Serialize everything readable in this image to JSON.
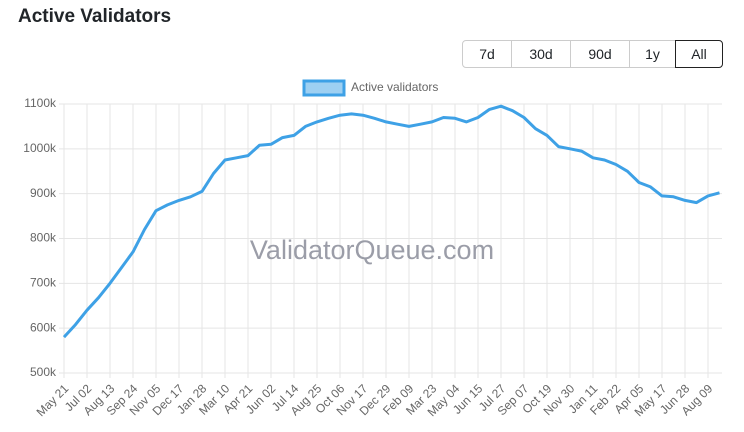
{
  "header": {
    "title": "Active Validators"
  },
  "range_buttons": [
    {
      "label": "7d"
    },
    {
      "label": "30d"
    },
    {
      "label": "90d"
    },
    {
      "label": "1y"
    },
    {
      "label": "All",
      "selected": true
    }
  ],
  "chart_data": {
    "type": "line",
    "watermark": "ValidatorQueue.com",
    "categories": [
      "May 21",
      null,
      "Jul 02",
      null,
      "Aug 13",
      null,
      "Sep 24",
      null,
      "Nov 05",
      null,
      "Dec 17",
      null,
      "Jan 28",
      null,
      "Mar 10",
      null,
      "Apr 21",
      null,
      "Jun 02",
      null,
      "Jul 14",
      null,
      "Aug 25",
      null,
      "Oct 06",
      null,
      "Nov 17",
      null,
      "Dec 29",
      null,
      "Feb 09",
      null,
      "Mar 23",
      null,
      "May 04",
      null,
      "Jun 15",
      null,
      "Jul 27",
      null,
      "Sep 07",
      null,
      "Oct 19",
      null,
      "Nov 30",
      null,
      "Jan 11",
      null,
      "Feb 22",
      null,
      "Apr 05",
      null,
      "May 17",
      null,
      "Jun 28",
      null,
      "Aug 09",
      null
    ],
    "series": [
      {
        "name": "Active validators",
        "color": "#3ea1e6",
        "values": [
          580000,
          608000,
          640000,
          668000,
          700000,
          735000,
          770000,
          820000,
          862000,
          875000,
          885000,
          893000,
          905000,
          945000,
          975000,
          980000,
          985000,
          1008000,
          1010000,
          1025000,
          1030000,
          1050000,
          1060000,
          1068000,
          1075000,
          1078000,
          1075000,
          1068000,
          1060000,
          1055000,
          1050000,
          1055000,
          1060000,
          1070000,
          1068000,
          1060000,
          1070000,
          1088000,
          1095000,
          1085000,
          1070000,
          1045000,
          1030000,
          1005000,
          1000000,
          995000,
          980000,
          975000,
          965000,
          950000,
          925000,
          915000,
          895000,
          893000,
          885000,
          880000,
          895000,
          902000
        ]
      }
    ],
    "ylim": [
      500000,
      1100000
    ],
    "yticks": [
      {
        "value": 500000,
        "label": "500k"
      },
      {
        "value": 600000,
        "label": "600k"
      },
      {
        "value": 700000,
        "label": "700k"
      },
      {
        "value": 800000,
        "label": "800k"
      },
      {
        "value": 900000,
        "label": "900k"
      },
      {
        "value": 1000000,
        "label": "1000k"
      },
      {
        "value": 1100000,
        "label": "1100k"
      }
    ],
    "grid": true,
    "legend": "top"
  }
}
